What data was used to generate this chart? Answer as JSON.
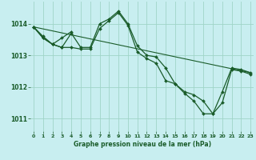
{
  "title": "Graphe pression niveau de la mer (hPa)",
  "bg_color": "#c8eef0",
  "grid_color": "#a0d4c8",
  "line_color": "#1a5c2a",
  "series": [
    {
      "x": [
        0,
        23
      ],
      "y": [
        1013.9,
        1012.45
      ]
    },
    {
      "x": [
        0,
        1,
        2,
        3,
        4,
        5,
        6,
        7,
        8,
        9,
        10,
        11,
        12,
        13,
        14,
        15,
        16,
        17,
        18,
        19,
        20,
        21,
        22,
        23
      ],
      "y": [
        1013.9,
        1013.6,
        1013.35,
        1013.25,
        1013.7,
        1013.25,
        1013.25,
        1014.0,
        1014.15,
        1014.4,
        1014.0,
        1013.3,
        1013.0,
        1012.95,
        1012.6,
        1012.1,
        1011.85,
        1011.75,
        1011.55,
        1011.15,
        1011.85,
        1012.6,
        1012.55,
        1012.45
      ]
    },
    {
      "x": [
        0,
        1,
        2,
        3,
        4,
        5,
        6,
        7,
        8,
        9,
        10,
        11,
        12,
        13,
        14,
        15,
        16,
        17,
        18,
        19,
        20,
        21,
        22,
        23
      ],
      "y": [
        1013.9,
        1013.55,
        1013.35,
        1013.25,
        1013.25,
        1013.2,
        1013.2,
        1013.85,
        1014.1,
        1014.35,
        1013.95,
        1013.1,
        1012.9,
        1012.75,
        1012.2,
        1012.1,
        1011.8,
        1011.55,
        1011.15,
        1011.15,
        1011.5,
        1012.55,
        1012.5,
        1012.4
      ]
    },
    {
      "x": [
        0,
        1,
        2,
        3,
        4
      ],
      "y": [
        1013.9,
        1013.55,
        1013.35,
        1013.55,
        1013.75
      ]
    }
  ],
  "ylim": [
    1010.6,
    1014.7
  ],
  "yticks": [
    1011,
    1012,
    1013,
    1014
  ],
  "xlim": [
    -0.3,
    23.3
  ],
  "xticks": [
    0,
    1,
    2,
    3,
    4,
    5,
    6,
    7,
    8,
    9,
    10,
    11,
    12,
    13,
    14,
    15,
    16,
    17,
    18,
    19,
    20,
    21,
    22,
    23
  ],
  "xtick_fontsize": 4.5,
  "ytick_fontsize": 5.5,
  "xlabel_fontsize": 5.5
}
